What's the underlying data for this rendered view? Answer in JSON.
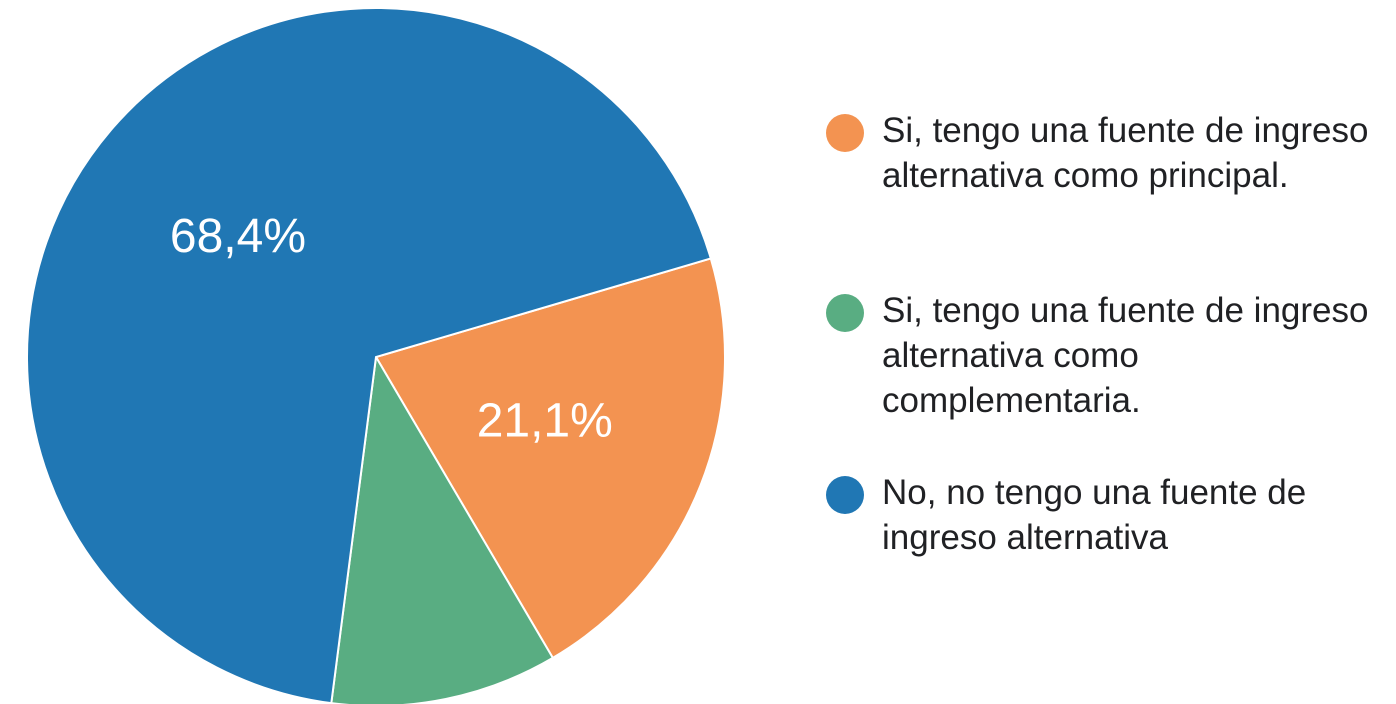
{
  "chart_data": {
    "type": "pie",
    "categories": [
      "Si, tengo una fuente de ingreso alternativa como principal.",
      "Si, tengo una fuente de ingreso alternativa como complementaria.",
      "No, no tengo una fuente de ingreso alternativa"
    ],
    "values": [
      21.1,
      10.5,
      68.4
    ],
    "value_labels": [
      "21,1%",
      null,
      "68,4%"
    ],
    "colors": [
      "#f39351",
      "#59ad82",
      "#2077b4"
    ]
  }
}
